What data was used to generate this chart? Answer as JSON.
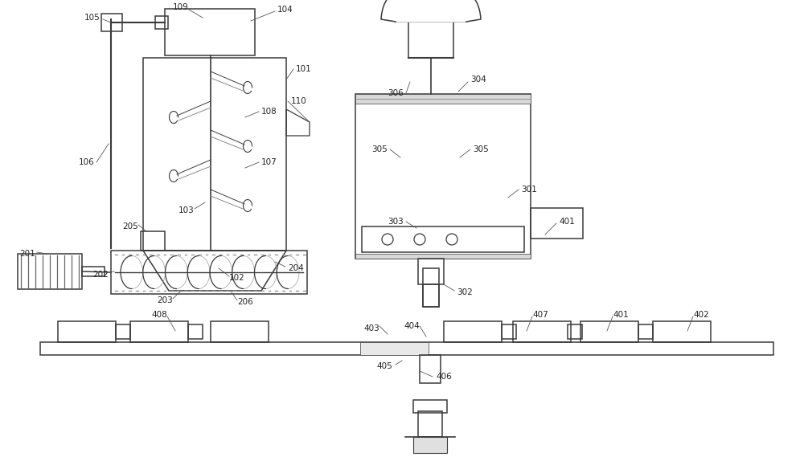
{
  "background_color": "#ffffff",
  "line_color": "#3a3a3a",
  "fig_width": 10.0,
  "fig_height": 5.74,
  "label_fontsize": 7.5,
  "lw_main": 1.1,
  "lw_thin": 0.7,
  "lw_label": 0.6
}
